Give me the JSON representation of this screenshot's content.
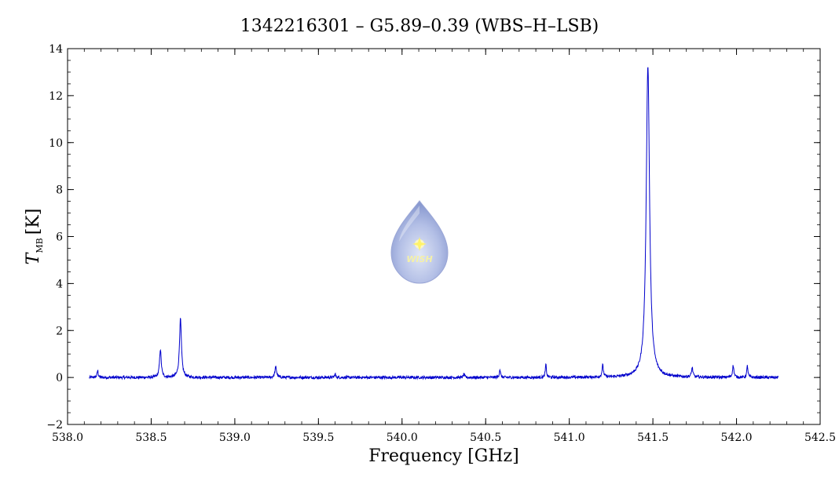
{
  "chart_data": {
    "type": "line",
    "title": "1342216301 – G5.89–0.39 (WBS–H–LSB)",
    "xlabel": "Frequency [GHz]",
    "ylabel_main": "T",
    "ylabel_sub": "MB",
    "ylabel_unit": "[K]",
    "xlim": [
      538.0,
      542.5
    ],
    "ylim": [
      -2,
      14
    ],
    "xticks": [
      538.0,
      538.5,
      539.0,
      539.5,
      540.0,
      540.5,
      541.0,
      541.5,
      542.0,
      542.5
    ],
    "xtick_labels": [
      "538.0",
      "538.5",
      "539.0",
      "539.5",
      "540.0",
      "540.5",
      "541.0",
      "541.5",
      "542.0",
      "542.5"
    ],
    "yticks": [
      -2,
      0,
      2,
      4,
      6,
      8,
      10,
      12,
      14
    ],
    "ytick_labels": [
      "−2",
      "0",
      "2",
      "4",
      "6",
      "8",
      "10",
      "12",
      "14"
    ],
    "grid": false,
    "legend": "none",
    "line_color": "#0000cc",
    "x_range": [
      538.13,
      542.25
    ],
    "baseline": 0.0,
    "noise_amplitude": 0.06,
    "series": [
      {
        "lines": [
          {
            "x": 538.18,
            "peak": 0.3,
            "width": 0.004
          },
          {
            "x": 538.555,
            "peak": 1.2,
            "width": 0.006
          },
          {
            "x": 538.675,
            "peak": 2.5,
            "width": 0.007
          },
          {
            "x": 539.245,
            "peak": 0.45,
            "width": 0.006
          },
          {
            "x": 539.6,
            "peak": 0.15,
            "width": 0.004
          },
          {
            "x": 540.37,
            "peak": 0.15,
            "width": 0.004
          },
          {
            "x": 540.585,
            "peak": 0.35,
            "width": 0.004
          },
          {
            "x": 540.86,
            "peak": 0.55,
            "width": 0.004
          },
          {
            "x": 541.2,
            "peak": 0.5,
            "width": 0.005
          },
          {
            "x": 541.47,
            "peak": 13.3,
            "width": 0.012
          },
          {
            "x": 541.735,
            "peak": 0.4,
            "width": 0.005
          },
          {
            "x": 541.98,
            "peak": 0.5,
            "width": 0.005
          },
          {
            "x": 542.065,
            "peak": 0.5,
            "width": 0.004
          }
        ]
      }
    ]
  },
  "logo": {
    "text": "WISH",
    "body_color": "#b3bfe6",
    "star_color": "#fff36a"
  }
}
